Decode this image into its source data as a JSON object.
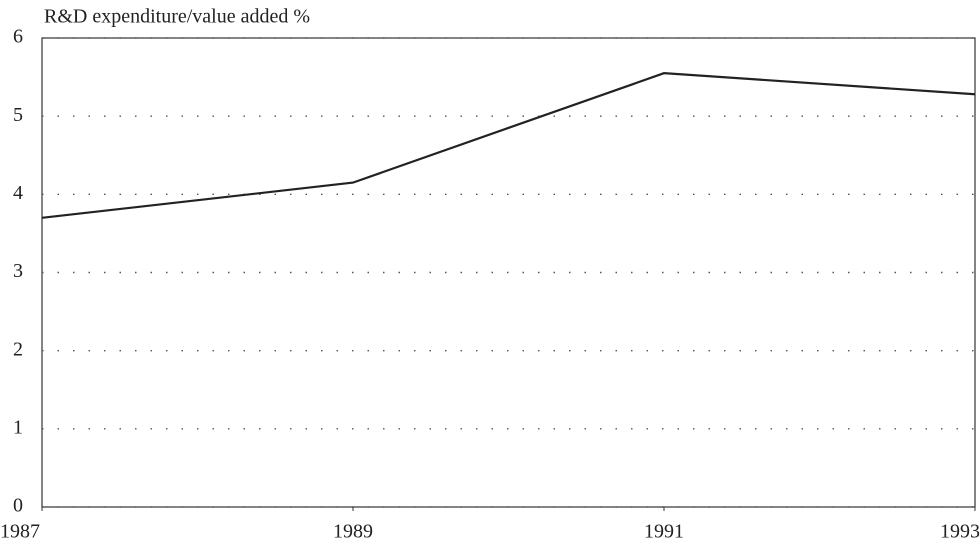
{
  "chart_data": {
    "type": "line",
    "y_label": "R&D expenditure/value added %",
    "x": [
      1987,
      1989,
      1991,
      1993
    ],
    "values": [
      3.7,
      4.15,
      5.55,
      5.28
    ],
    "color": "#222222",
    "xlim": [
      1987,
      1993
    ],
    "xticks": [
      1987,
      1989,
      1991,
      1993
    ],
    "ylim": [
      0,
      6
    ],
    "yticks": [
      0,
      1,
      2,
      3,
      4,
      5,
      6
    ],
    "grid": true
  }
}
